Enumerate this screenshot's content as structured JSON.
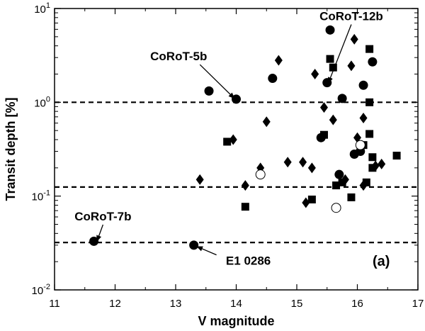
{
  "chart_data": {
    "type": "scatter",
    "title": "",
    "panel_label": "(a)",
    "xlabel": "V magnitude",
    "ylabel": "Transit depth [%]",
    "xlim": [
      11,
      17
    ],
    "ylim": [
      0.01,
      10
    ],
    "y_scale": "log",
    "x_ticks": [
      11,
      12,
      13,
      14,
      15,
      16,
      17
    ],
    "x_tick_labels": [
      "11",
      "12",
      "13",
      "14",
      "15",
      "16",
      "17"
    ],
    "y_tick_labels": [
      {
        "value": 0.01,
        "base": "10",
        "exp": "-2"
      },
      {
        "value": 0.1,
        "base": "10",
        "exp": "-1"
      },
      {
        "value": 1,
        "base": "10",
        "exp": "0"
      },
      {
        "value": 10,
        "base": "10",
        "exp": "1"
      }
    ],
    "grid": false,
    "reference_lines": [
      1.0,
      0.125,
      0.032
    ],
    "series": [
      {
        "marker": "filled-circle",
        "points": [
          [
            11.65,
            0.033
          ],
          [
            13.3,
            0.03
          ],
          [
            13.55,
            1.32
          ],
          [
            14.0,
            1.08
          ],
          [
            14.6,
            1.8
          ],
          [
            15.4,
            0.42
          ],
          [
            15.5,
            1.62
          ],
          [
            15.55,
            5.9
          ],
          [
            15.75,
            1.1
          ],
          [
            15.7,
            0.17
          ],
          [
            15.95,
            0.28
          ],
          [
            16.1,
            1.52
          ],
          [
            16.25,
            2.7
          ],
          [
            16.05,
            0.3
          ]
        ]
      },
      {
        "marker": "filled-square",
        "points": [
          [
            13.85,
            0.38
          ],
          [
            14.15,
            0.077
          ],
          [
            15.25,
            0.092
          ],
          [
            15.45,
            0.45
          ],
          [
            15.55,
            2.9
          ],
          [
            15.6,
            2.35
          ],
          [
            15.65,
            0.13
          ],
          [
            15.75,
            0.14
          ],
          [
            15.9,
            0.097
          ],
          [
            16.1,
            0.35
          ],
          [
            16.15,
            0.14
          ],
          [
            16.2,
            3.7
          ],
          [
            16.2,
            1.0
          ],
          [
            16.2,
            0.46
          ],
          [
            16.25,
            0.26
          ],
          [
            16.25,
            0.2
          ],
          [
            16.65,
            0.27
          ]
        ]
      },
      {
        "marker": "filled-diamond",
        "points": [
          [
            13.4,
            0.15
          ],
          [
            13.95,
            0.4
          ],
          [
            14.15,
            0.13
          ],
          [
            14.4,
            0.2
          ],
          [
            14.5,
            0.62
          ],
          [
            14.7,
            2.8
          ],
          [
            14.85,
            0.23
          ],
          [
            15.1,
            0.23
          ],
          [
            15.15,
            0.085
          ],
          [
            15.25,
            0.2
          ],
          [
            15.3,
            2.0
          ],
          [
            15.45,
            0.88
          ],
          [
            15.6,
            0.65
          ],
          [
            15.8,
            0.15
          ],
          [
            15.9,
            2.45
          ],
          [
            15.95,
            4.7
          ],
          [
            16.0,
            0.42
          ],
          [
            16.1,
            0.68
          ],
          [
            16.1,
            0.13
          ],
          [
            16.3,
            0.21
          ],
          [
            16.4,
            0.22
          ]
        ]
      },
      {
        "marker": "open-circle",
        "points": [
          [
            14.4,
            0.17
          ],
          [
            15.65,
            0.075
          ],
          [
            16.05,
            0.35
          ]
        ]
      }
    ],
    "annotations": [
      {
        "text": "CoRoT-12b",
        "target": [
          15.52,
          1.6
        ],
        "text_at": [
          15.9,
          7.5
        ]
      },
      {
        "text": "CoRoT-5b",
        "target": [
          13.97,
          1.1
        ],
        "text_at": [
          13.05,
          2.8
        ]
      },
      {
        "text": "CoRoT-7b",
        "target": [
          11.7,
          0.033
        ],
        "text_at": [
          11.8,
          0.055
        ]
      },
      {
        "text": "E1 0286",
        "target": [
          13.35,
          0.029
        ],
        "text_at": [
          14.2,
          0.0185
        ]
      }
    ]
  }
}
